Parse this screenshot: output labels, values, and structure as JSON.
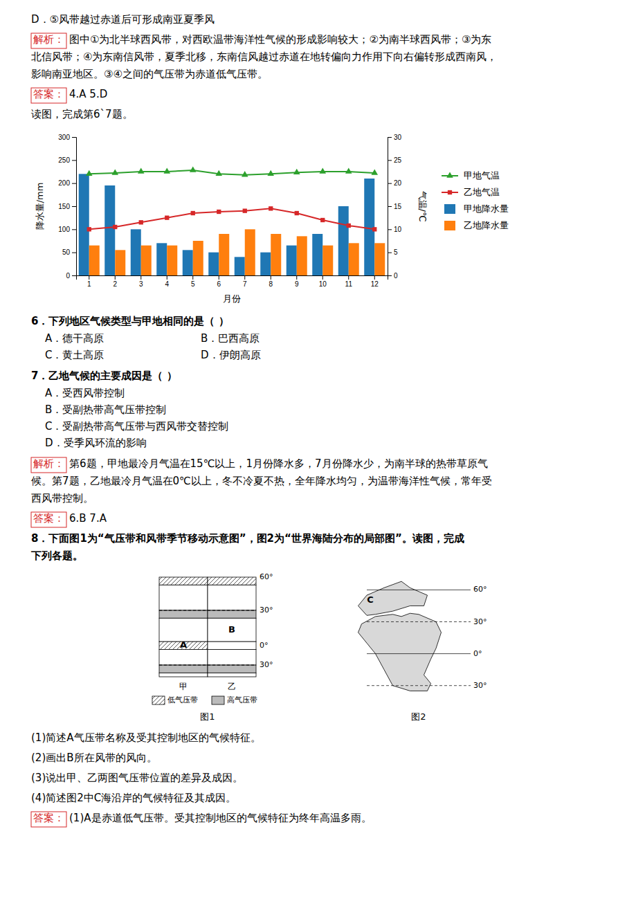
{
  "page": {
    "before_chart": [
      {
        "text": "D．⑤风带越过赤道后可形成南亚夏季风"
      },
      {
        "label": "解析：",
        "lines": [
          "图中①为北半球西风带，对西欧温带海洋性气候的形成影响较大；②为南半球西风带；③为东",
          "北信风带；④为东南信风带，夏季北移，东南信风越过赤道在地转偏向力作用下向右偏转形成西南风，",
          "影响南亚地区。③④之间的气压带为赤道低气压带。"
        ]
      },
      {
        "label": "答案：",
        "lines": [
          "4.A   5.D"
        ]
      },
      {
        "text": "读图，完成第6`7题。"
      }
    ],
    "after_chart": [
      {
        "question": [
          "6．下列地区气候类型与甲地相同的是（     ）"
        ],
        "options": [
          "A．德干高原",
          "B．巴西高原",
          "C．黄土高原",
          "D．伊朗高原"
        ]
      },
      {
        "question": [
          "7．乙地气候的主要成因是（     ）"
        ],
        "options": [
          "A．受西风带控制",
          "B．受副热带高气压带控制",
          "C．受副热带高气压带与西风带交替控制",
          "D．受季风环流的影响"
        ]
      },
      {
        "label": "解析：",
        "lines": [
          "第6题，甲地最冷月气温在15℃以上，1月份降水多，7月份降水少，为南半球的热带草原气",
          "候。第7题，乙地最冷月气温在0℃以上，冬不冷夏不热，全年降水均匀，为温带海洋性气候，常年受",
          "西风带控制。"
        ]
      },
      {
        "label": "答案：",
        "lines": [
          "6.B   7.A"
        ]
      },
      {
        "question": [
          "8．下面图1为“气压带和风带季节移动示意图”，图2为“世界海陆分布的局部图”。读图，完成",
          "下列各题。"
        ]
      }
    ],
    "after_figures": [
      {
        "text": "(1)简述A气压带名称及受其控制地区的气候特征。"
      },
      {
        "text": "(2)画出B所在风带的风向。"
      },
      {
        "text": "(3)说出甲、乙两图气压带位置的差异及成因。"
      },
      {
        "text": "(4)简述图2中C海沿岸的气候特征及其成因。"
      },
      {
        "label": "答案：",
        "lines": [
          "(1)A是赤道低气压带。受其控制地区的气候特征为终年高温多雨。"
        ]
      }
    ]
  },
  "chart_data": {
    "type": "bar",
    "xlabel": "月份",
    "ylabel": "降水量/mm",
    "y2label": "气温/℃",
    "categories": [
      "1",
      "2",
      "3",
      "4",
      "5",
      "6",
      "7",
      "8",
      "9",
      "10",
      "11",
      "12"
    ],
    "series": [
      {
        "name": "甲地降水量",
        "type": "bar",
        "values": [
          220,
          195,
          100,
          70,
          55,
          50,
          40,
          50,
          65,
          90,
          150,
          210
        ]
      },
      {
        "name": "乙地降水量",
        "type": "bar",
        "values": [
          65,
          55,
          65,
          65,
          75,
          90,
          100,
          90,
          85,
          65,
          70,
          70
        ]
      },
      {
        "name": "甲地气温",
        "type": "line",
        "axis": "y2",
        "marker": "triangle",
        "values": [
          22.0,
          22.2,
          22.5,
          22.5,
          22.8,
          22.0,
          21.8,
          22.0,
          22.3,
          22.5,
          22.5,
          22.2
        ]
      },
      {
        "name": "乙地气温",
        "type": "line",
        "axis": "y2",
        "marker": "square",
        "values": [
          10.0,
          10.5,
          11.5,
          12.5,
          13.5,
          13.8,
          14.0,
          14.5,
          13.5,
          12.0,
          10.8,
          10.0
        ]
      }
    ],
    "ylim": [
      0,
      300
    ],
    "yticks": [
      0,
      50,
      100,
      150,
      200,
      250,
      300
    ],
    "y2lim": [
      0,
      30
    ],
    "y2ticks": [
      0,
      5,
      10,
      15,
      20,
      25,
      30
    ],
    "grid": false,
    "legend": "right"
  },
  "figures": [
    {
      "caption": "图1",
      "columns": [
        "甲",
        "乙"
      ],
      "lat_labels": [
        "60°",
        "30°",
        "0°",
        "30°"
      ],
      "markers": [
        "A",
        "B"
      ],
      "key_labels": [
        "低气压带",
        "高气压带"
      ]
    },
    {
      "caption": "图2",
      "xlim": [
        -5,
        55
      ],
      "ylim": [
        -38,
        72
      ],
      "shapes": [
        {
          "lon": [
            15,
            20,
            25,
            35,
            38,
            35,
            32,
            28,
            32,
            30,
            20,
            10,
            5,
            0,
            -5,
            -10,
            -8,
            0,
            10,
            15
          ],
          "lat": [
            35,
            38,
            37,
            30,
            20,
            5,
            -5,
            -20,
            -28,
            -35,
            -35,
            -30,
            -15,
            0,
            10,
            20,
            28,
            35,
            37,
            35
          ]
        },
        {
          "lon": [
            -5,
            0,
            10,
            20,
            28,
            30,
            20,
            15,
            5,
            -5,
            -10,
            -5
          ],
          "lat": [
            36,
            37,
            40,
            45,
            45,
            55,
            62,
            68,
            62,
            55,
            45,
            36
          ]
        }
      ],
      "lat_lines": [
        {
          "value": 60,
          "label": "60°",
          "line_style": "solid"
        },
        {
          "value": 30,
          "label": "30°",
          "line_style": "dashed"
        },
        {
          "value": 0,
          "label": "0°",
          "line_style": "solid"
        },
        {
          "value": -30,
          "label": "30°",
          "line_style": "dashed"
        }
      ],
      "markers": [
        {
          "label": "C",
          "lon": -3,
          "lat": 50
        }
      ]
    }
  ]
}
